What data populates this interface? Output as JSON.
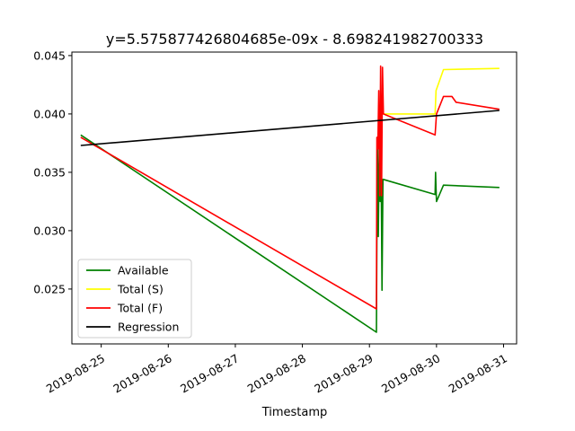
{
  "chart_data": {
    "type": "line",
    "title": "y=5.575877426804685e-09x - 8.698241982700333",
    "xlabel": "Timestamp",
    "ylabel": "",
    "x_type": "datetime",
    "xlim": [
      "2019-08-24 13:30",
      "2019-08-31 04:40"
    ],
    "ylim": [
      0.0203,
      0.0453
    ],
    "x_ticks": [
      "2019-08-25",
      "2019-08-26",
      "2019-08-27",
      "2019-08-28",
      "2019-08-29",
      "2019-08-30",
      "2019-08-31"
    ],
    "y_ticks": [
      0.025,
      0.03,
      0.035,
      0.04,
      0.045
    ],
    "y_tick_labels": [
      "0.025",
      "0.030",
      "0.035",
      "0.040",
      "0.045"
    ],
    "legend_position": "lower-left",
    "grid": false,
    "series": [
      {
        "name": "Available",
        "color": "#008000",
        "points": [
          [
            "2019-08-24 16:40",
            0.0382
          ],
          [
            "2019-08-29 02:30",
            0.0213
          ],
          [
            "2019-08-29 02:50",
            0.0378
          ],
          [
            "2019-08-29 03:10",
            0.0295
          ],
          [
            "2019-08-29 03:30",
            0.0372
          ],
          [
            "2019-08-29 03:50",
            0.0325
          ],
          [
            "2019-08-29 04:10",
            0.0365
          ],
          [
            "2019-08-29 04:30",
            0.0249
          ],
          [
            "2019-08-29 04:50",
            0.0344
          ],
          [
            "2019-08-29 23:30",
            0.0331
          ],
          [
            "2019-08-29 23:40",
            0.035
          ],
          [
            "2019-08-29 23:50",
            0.0336
          ],
          [
            "2019-08-30 00:00",
            0.0325
          ],
          [
            "2019-08-30 02:30",
            0.0339
          ],
          [
            "2019-08-30 22:30",
            0.0337
          ]
        ]
      },
      {
        "name": "Total (S)",
        "color": "#ffff00",
        "points": [
          [
            "2019-08-29 04:50",
            0.04
          ],
          [
            "2019-08-29 23:30",
            0.04
          ],
          [
            "2019-08-29 23:50",
            0.042
          ],
          [
            "2019-08-30 02:30",
            0.0438
          ],
          [
            "2019-08-30 22:30",
            0.0439
          ]
        ]
      },
      {
        "name": "Total (F)",
        "color": "#ff0000",
        "points": [
          [
            "2019-08-24 16:40",
            0.038
          ],
          [
            "2019-08-29 02:30",
            0.0233
          ],
          [
            "2019-08-29 02:40",
            0.038
          ],
          [
            "2019-08-29 03:00",
            0.037
          ],
          [
            "2019-08-29 03:20",
            0.042
          ],
          [
            "2019-08-29 03:40",
            0.033
          ],
          [
            "2019-08-29 04:00",
            0.0441
          ],
          [
            "2019-08-29 04:20",
            0.033
          ],
          [
            "2019-08-29 04:40",
            0.044
          ],
          [
            "2019-08-29 05:00",
            0.04
          ],
          [
            "2019-08-29 23:30",
            0.0382
          ],
          [
            "2019-08-30 00:00",
            0.04
          ],
          [
            "2019-08-30 02:30",
            0.0415
          ],
          [
            "2019-08-30 05:30",
            0.0415
          ],
          [
            "2019-08-30 07:00",
            0.041
          ],
          [
            "2019-08-30 22:30",
            0.0404
          ]
        ]
      },
      {
        "name": "Regression",
        "color": "#000000",
        "points": [
          [
            "2019-08-24 16:40",
            0.0373
          ],
          [
            "2019-08-30 22:30",
            0.0403
          ]
        ]
      }
    ]
  }
}
